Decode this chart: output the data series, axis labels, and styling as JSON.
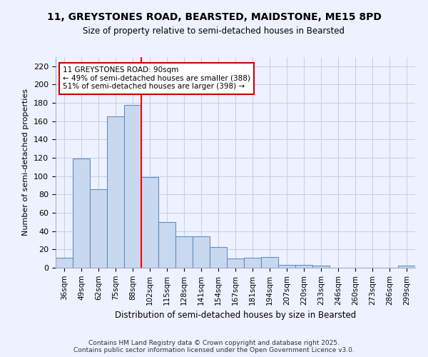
{
  "title_line1": "11, GREYSTONES ROAD, BEARSTED, MAIDSTONE, ME15 8PD",
  "title_line2": "Size of property relative to semi-detached houses in Bearsted",
  "xlabel": "Distribution of semi-detached houses by size in Bearsted",
  "ylabel": "Number of semi-detached properties",
  "categories": [
    "36sqm",
    "49sqm",
    "62sqm",
    "75sqm",
    "88sqm",
    "102sqm",
    "115sqm",
    "128sqm",
    "141sqm",
    "154sqm",
    "167sqm",
    "181sqm",
    "194sqm",
    "207sqm",
    "220sqm",
    "233sqm",
    "246sqm",
    "260sqm",
    "273sqm",
    "286sqm",
    "299sqm"
  ],
  "values": [
    11,
    119,
    86,
    165,
    178,
    99,
    50,
    34,
    34,
    23,
    10,
    11,
    12,
    3,
    3,
    2,
    0,
    0,
    0,
    0,
    2
  ],
  "bar_color": "#c8d8ee",
  "bar_edge_color": "#6090c0",
  "red_line_x": 4.5,
  "annotation_title": "11 GREYSTONES ROAD: 90sqm",
  "annotation_line1": "← 49% of semi-detached houses are smaller (388)",
  "annotation_line2": "51% of semi-detached houses are larger (398) →",
  "annotation_box_color": "#ffffff",
  "annotation_box_edge": "#cc0000",
  "ylim": [
    0,
    230
  ],
  "yticks": [
    0,
    20,
    40,
    60,
    80,
    100,
    120,
    140,
    160,
    180,
    200,
    220
  ],
  "background_color": "#eef2ff",
  "grid_color": "#c8d0e8",
  "footer_line1": "Contains HM Land Registry data © Crown copyright and database right 2025.",
  "footer_line2": "Contains public sector information licensed under the Open Government Licence v3.0."
}
